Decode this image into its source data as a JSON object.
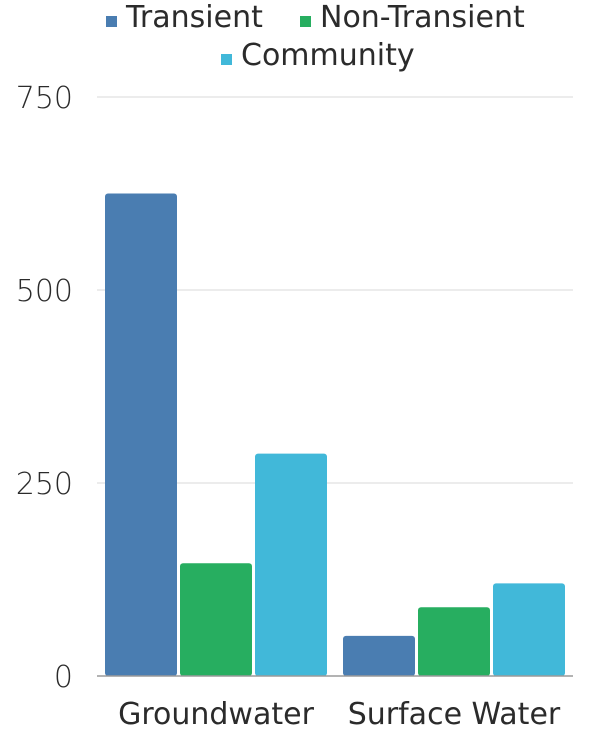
{
  "chart_data": {
    "type": "bar",
    "categories": [
      "Groundwater",
      "Surface Water"
    ],
    "series": [
      {
        "name": "Transient",
        "values": [
          625,
          52
        ],
        "color": "#4a7db1"
      },
      {
        "name": "Non-Transient",
        "values": [
          146,
          89
        ],
        "color": "#27ae60"
      },
      {
        "name": "Community",
        "values": [
          288,
          120
        ],
        "color": "#41b8d9"
      }
    ],
    "yticks": [
      0,
      250,
      500,
      750
    ],
    "ylim": [
      0,
      750
    ],
    "grid": true,
    "legend_position": "top",
    "title": "",
    "xlabel": "",
    "ylabel": ""
  }
}
